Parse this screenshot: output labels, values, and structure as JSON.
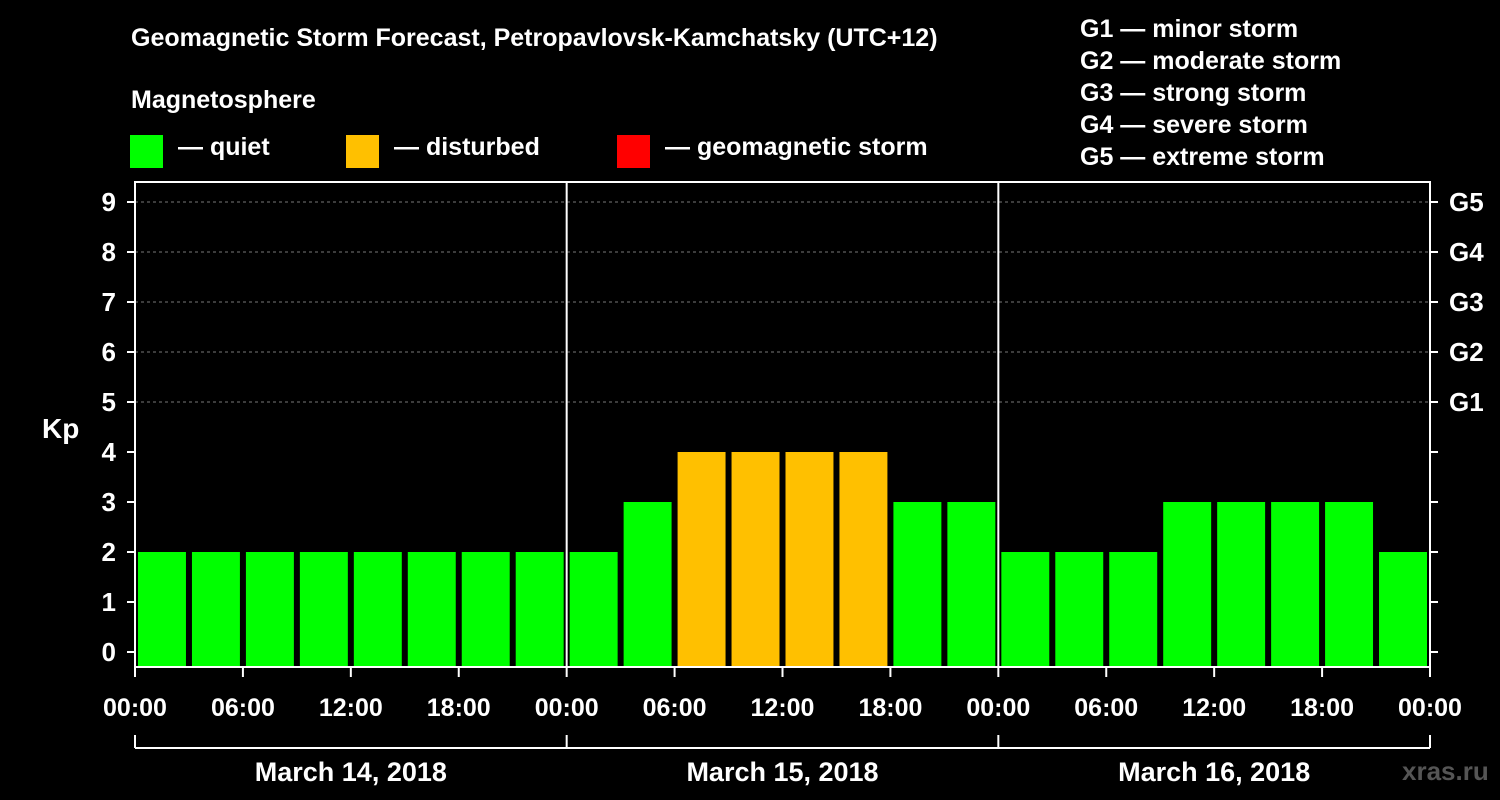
{
  "chart_data": {
    "type": "bar",
    "title": "Geomagnetic Storm Forecast, Petropavlovsk-Kamchatsky (UTC+12)",
    "ylabel": "Kp",
    "ylim": [
      0,
      9
    ],
    "yticks": [
      "0",
      "1",
      "2",
      "3",
      "4",
      "5",
      "6",
      "7",
      "8",
      "9"
    ],
    "right_ticks": [
      {
        "kp": 5,
        "label": "G1"
      },
      {
        "kp": 6,
        "label": "G2"
      },
      {
        "kp": 7,
        "label": "G3"
      },
      {
        "kp": 8,
        "label": "G4"
      },
      {
        "kp": 9,
        "label": "G5"
      }
    ],
    "xtick_labels": [
      "00:00",
      "06:00",
      "12:00",
      "18:00",
      "00:00",
      "06:00",
      "12:00",
      "18:00",
      "00:00",
      "06:00",
      "12:00",
      "18:00",
      "00:00"
    ],
    "days": [
      "March 14, 2018",
      "March 15, 2018",
      "March 16, 2018"
    ],
    "values": [
      2,
      2,
      2,
      2,
      2,
      2,
      2,
      2,
      2,
      3,
      4,
      4,
      4,
      4,
      3,
      3,
      2,
      2,
      2,
      3,
      3,
      3,
      3,
      2
    ],
    "grid": true
  },
  "legend": {
    "heading": "Magnetosphere",
    "items": [
      {
        "label": "— quiet",
        "color": "#00ff00"
      },
      {
        "label": "— disturbed",
        "color": "#ffc000"
      },
      {
        "label": "— geomagnetic storm",
        "color": "#ff0000"
      }
    ]
  },
  "storm_levels": [
    "G1 — minor storm",
    "G2 — moderate storm",
    "G3 — strong storm",
    "G4 — severe storm",
    "G5 — extreme storm"
  ],
  "watermark": "xras.ru"
}
